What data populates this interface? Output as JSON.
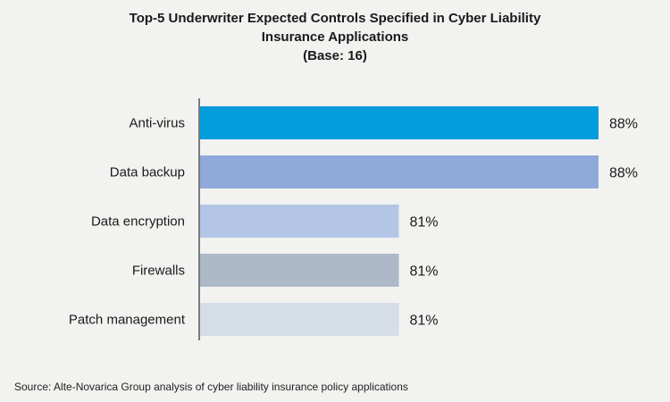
{
  "title": {
    "line1": "Top-5 Underwriter Expected Controls Specified in Cyber Liability",
    "line2": "Insurance Applications",
    "line3": "(Base: 16)"
  },
  "source": "Source: Alte-Novarica Group analysis of cyber liability insurance policy applications",
  "chart_data": {
    "type": "bar",
    "orientation": "horizontal",
    "title": "Top-5 Underwriter Expected Controls Specified in Cyber Liability Insurance Applications (Base: 16)",
    "categories": [
      "Anti-virus",
      "Data backup",
      "Data encryption",
      "Firewalls",
      "Patch management"
    ],
    "values": [
      88,
      88,
      81,
      81,
      81
    ],
    "value_labels": [
      "88%",
      "88%",
      "81%",
      "81%",
      "81%"
    ],
    "unit": "%",
    "colors": [
      "#009cdc",
      "#8fa9db",
      "#b3c6e6",
      "#adb8c8",
      "#d5dde7"
    ],
    "axis_min": 74,
    "axis_max": 88,
    "grid": false,
    "legend": "none"
  }
}
